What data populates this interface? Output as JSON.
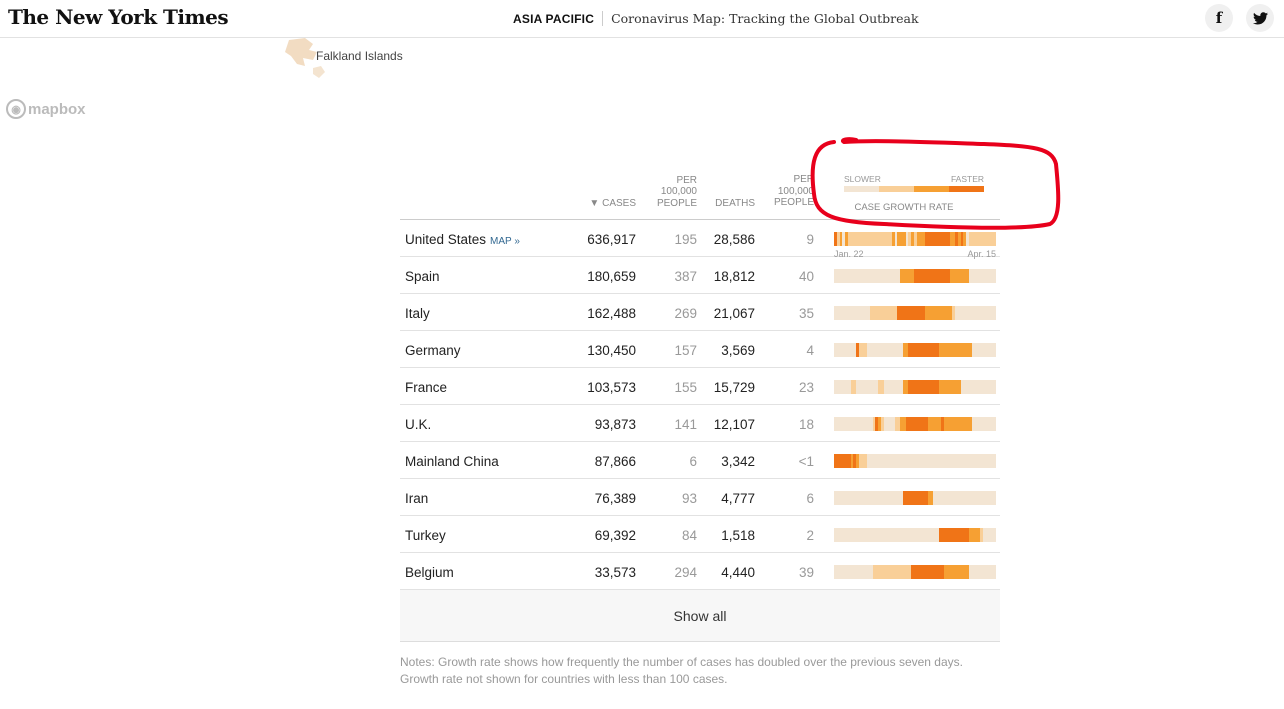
{
  "header": {
    "logo": "The New York Times",
    "section": "ASIA PACIFIC",
    "title": "Coronavirus Map: Tracking the Global Outbreak",
    "share_facebook": "f",
    "share_twitter": "twitter-icon"
  },
  "map": {
    "label": "Falkland Islands",
    "attribution": "mapbox"
  },
  "table": {
    "headers": {
      "cases_sort_arrow": "▼",
      "cases": "CASES",
      "per_100k_1": "PER 100,000 PEOPLE",
      "deaths": "DEATHS",
      "per_100k_2": "PER 100,000 PEOPLE"
    },
    "legend": {
      "slower": "SLOWER",
      "faster": "FASTER",
      "title": "CASE GROWTH RATE",
      "colors": [
        "#f3e5d3",
        "#f9cf98",
        "#f6a033",
        "#f07417"
      ]
    },
    "map_link": "MAP »",
    "spark_start": "Jan. 22",
    "spark_end": "Apr. 15",
    "rows": [
      {
        "country": "United States",
        "cases": "636,917",
        "per1": "195",
        "deaths": "28,586",
        "per2": "9",
        "spark": "31202111111111111111120222012122233333333322323201111111111"
      },
      {
        "country": "Spain",
        "cases": "180,659",
        "per1": "387",
        "deaths": "18,812",
        "per2": "40",
        "spark": "00000000000000000000000022222333333333333322222220000000000"
      },
      {
        "country": "Italy",
        "cases": "162,488",
        "per1": "269",
        "deaths": "21,067",
        "per2": "35",
        "spark": "00000000000001111111111333333333322222222221000000000000000"
      },
      {
        "country": "Germany",
        "cases": "130,450",
        "per1": "157",
        "deaths": "3,569",
        "per2": "4",
        "spark": "00000000311100000000000002233333333333222222222222000000000"
      },
      {
        "country": "France",
        "cases": "103,573",
        "per1": "155",
        "deaths": "15,729",
        "per2": "23",
        "spark": "00000011000000001100000002233333333333222222220000000000000"
      },
      {
        "country": "U.K.",
        "cases": "93,873",
        "per1": "141",
        "deaths": "12,107",
        "per2": "18",
        "spark": "00000000000000132100001122333333332222232222222222000000000"
      },
      {
        "country": "Mainland China",
        "cases": "87,866",
        "per1": "6",
        "deaths": "3,342",
        "per2": "<1",
        "spark": "33333323211100000000000000000000000000000000000000000000000"
      },
      {
        "country": "Iran",
        "cases": "76,389",
        "per1": "93",
        "deaths": "4,777",
        "per2": "6",
        "spark": "00000000000000000000000003333333332200000000000000000000000"
      },
      {
        "country": "Turkey",
        "cases": "69,392",
        "per1": "84",
        "deaths": "1,518",
        "per2": "2",
        "spark": "00000000000000000000000000000000000000333333333332222100000"
      },
      {
        "country": "Belgium",
        "cases": "33,573",
        "per1": "294",
        "deaths": "4,440",
        "per2": "39",
        "spark": "00000000000000111111111111113333333333332222222220000000000"
      }
    ],
    "show_all": "Show all",
    "notes": "Notes: Growth rate shows how frequently the number of cases has doubled over the previous seven days. Growth rate not shown for countries with less than 100 cases."
  }
}
